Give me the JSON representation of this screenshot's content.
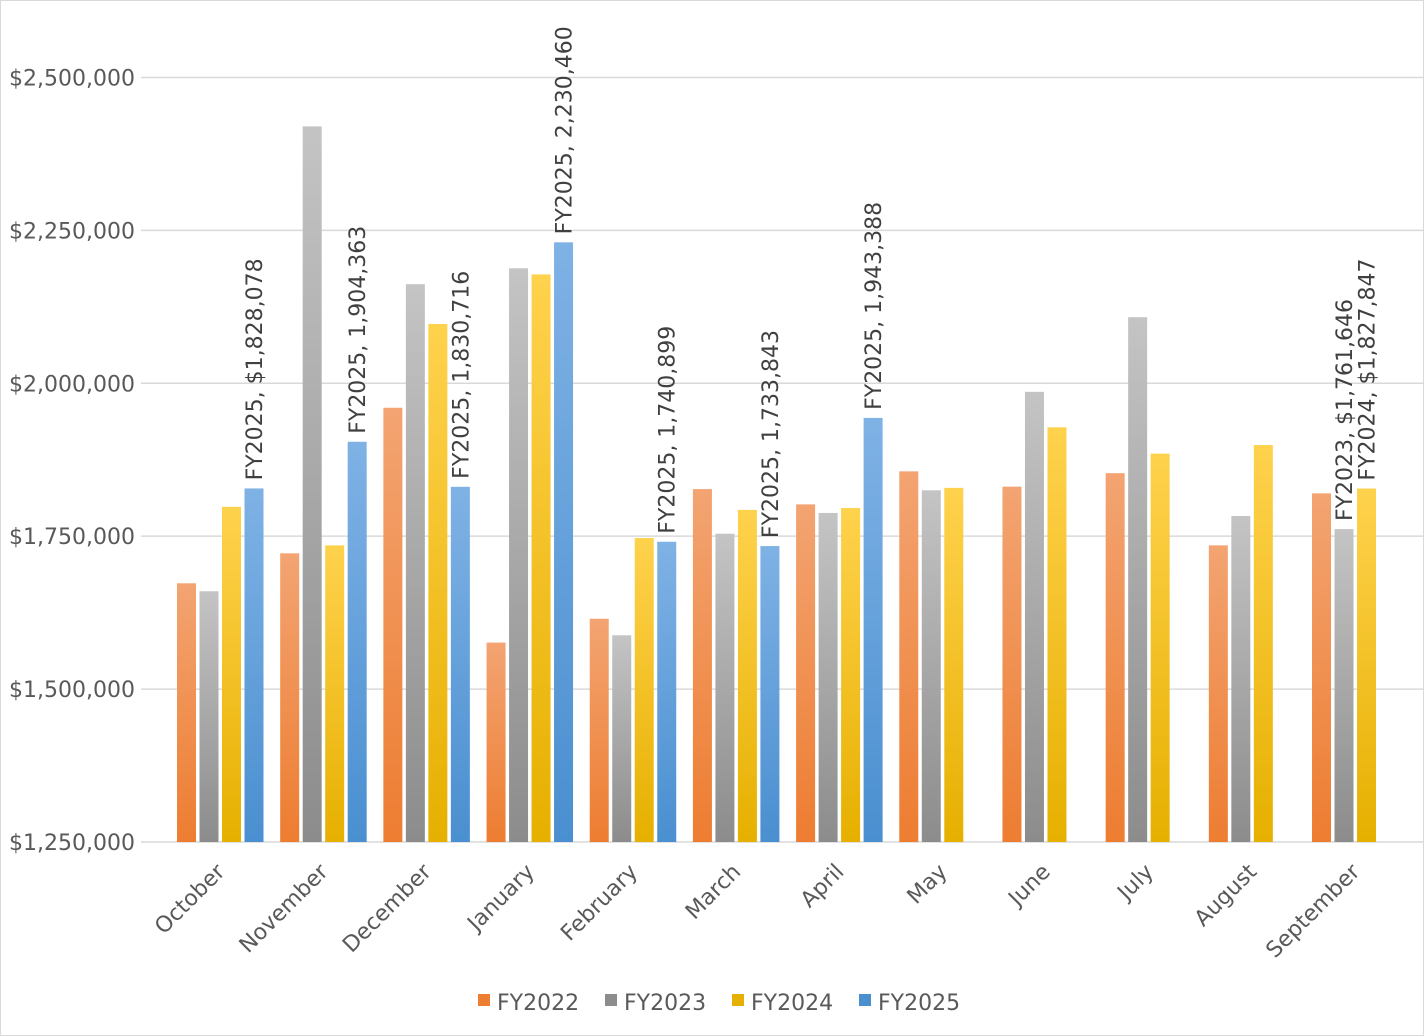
{
  "chart_data": {
    "type": "bar",
    "title": "",
    "xlabel": "",
    "ylabel": "",
    "ylim": [
      1250000,
      2625000
    ],
    "y_ticks": [
      1250000,
      1500000,
      1750000,
      2000000,
      2250000,
      2500000
    ],
    "y_tick_labels": [
      "$1,250,000",
      "$1,500,000",
      "$1,750,000",
      "$2,000,000",
      "$2,250,000",
      "$2,500,000"
    ],
    "grid": true,
    "legend_position": "bottom",
    "categories": [
      "October",
      "November",
      "December",
      "January",
      "February",
      "March",
      "April",
      "May",
      "June",
      "July",
      "August",
      "September"
    ],
    "series": [
      {
        "name": "FY2022",
        "color": "#ed7d31",
        "color_light": "#f3a472",
        "values": [
          1673000,
          1722000,
          1960000,
          1576000,
          1615000,
          1827000,
          1802000,
          1856000,
          1831000,
          1853000,
          1735000,
          1820000
        ]
      },
      {
        "name": "FY2023",
        "color": "#8c8c8c",
        "color_light": "#c4c4c4",
        "values": [
          1660000,
          2420000,
          2162000,
          2188000,
          1588000,
          1754000,
          1788000,
          1825000,
          1986000,
          2108000,
          1783000,
          1761646
        ]
      },
      {
        "name": "FY2024",
        "color": "#e6b000",
        "color_light": "#ffd24d",
        "values": [
          1798000,
          1735000,
          2097000,
          2178000,
          1747000,
          1793000,
          1796000,
          1829000,
          1928000,
          1885000,
          1899000,
          1827847
        ]
      },
      {
        "name": "FY2025",
        "color": "#4a8fd0",
        "color_light": "#7fb2e5",
        "values": [
          1828078,
          1904363,
          1830716,
          2230460,
          1740899,
          1733843,
          1943388,
          null,
          null,
          null,
          null,
          null
        ]
      }
    ],
    "data_labels": [
      {
        "series": "FY2025",
        "category": "October",
        "text": "FY2025,  $1,828,078"
      },
      {
        "series": "FY2025",
        "category": "November",
        "text": "FY2025,  1,904,363"
      },
      {
        "series": "FY2025",
        "category": "December",
        "text": "FY2025,  1,830,716"
      },
      {
        "series": "FY2025",
        "category": "January",
        "text": "FY2025,  2,230,460"
      },
      {
        "series": "FY2025",
        "category": "February",
        "text": "FY2025,  1,740,899"
      },
      {
        "series": "FY2025",
        "category": "March",
        "text": "FY2025,  1,733,843"
      },
      {
        "series": "FY2025",
        "category": "April",
        "text": "FY2025,  1,943,388"
      },
      {
        "series": "FY2023",
        "category": "September",
        "text": "FY2023, $1,761,646"
      },
      {
        "series": "FY2024",
        "category": "September",
        "text": "FY2024, $1,827,847"
      }
    ]
  }
}
